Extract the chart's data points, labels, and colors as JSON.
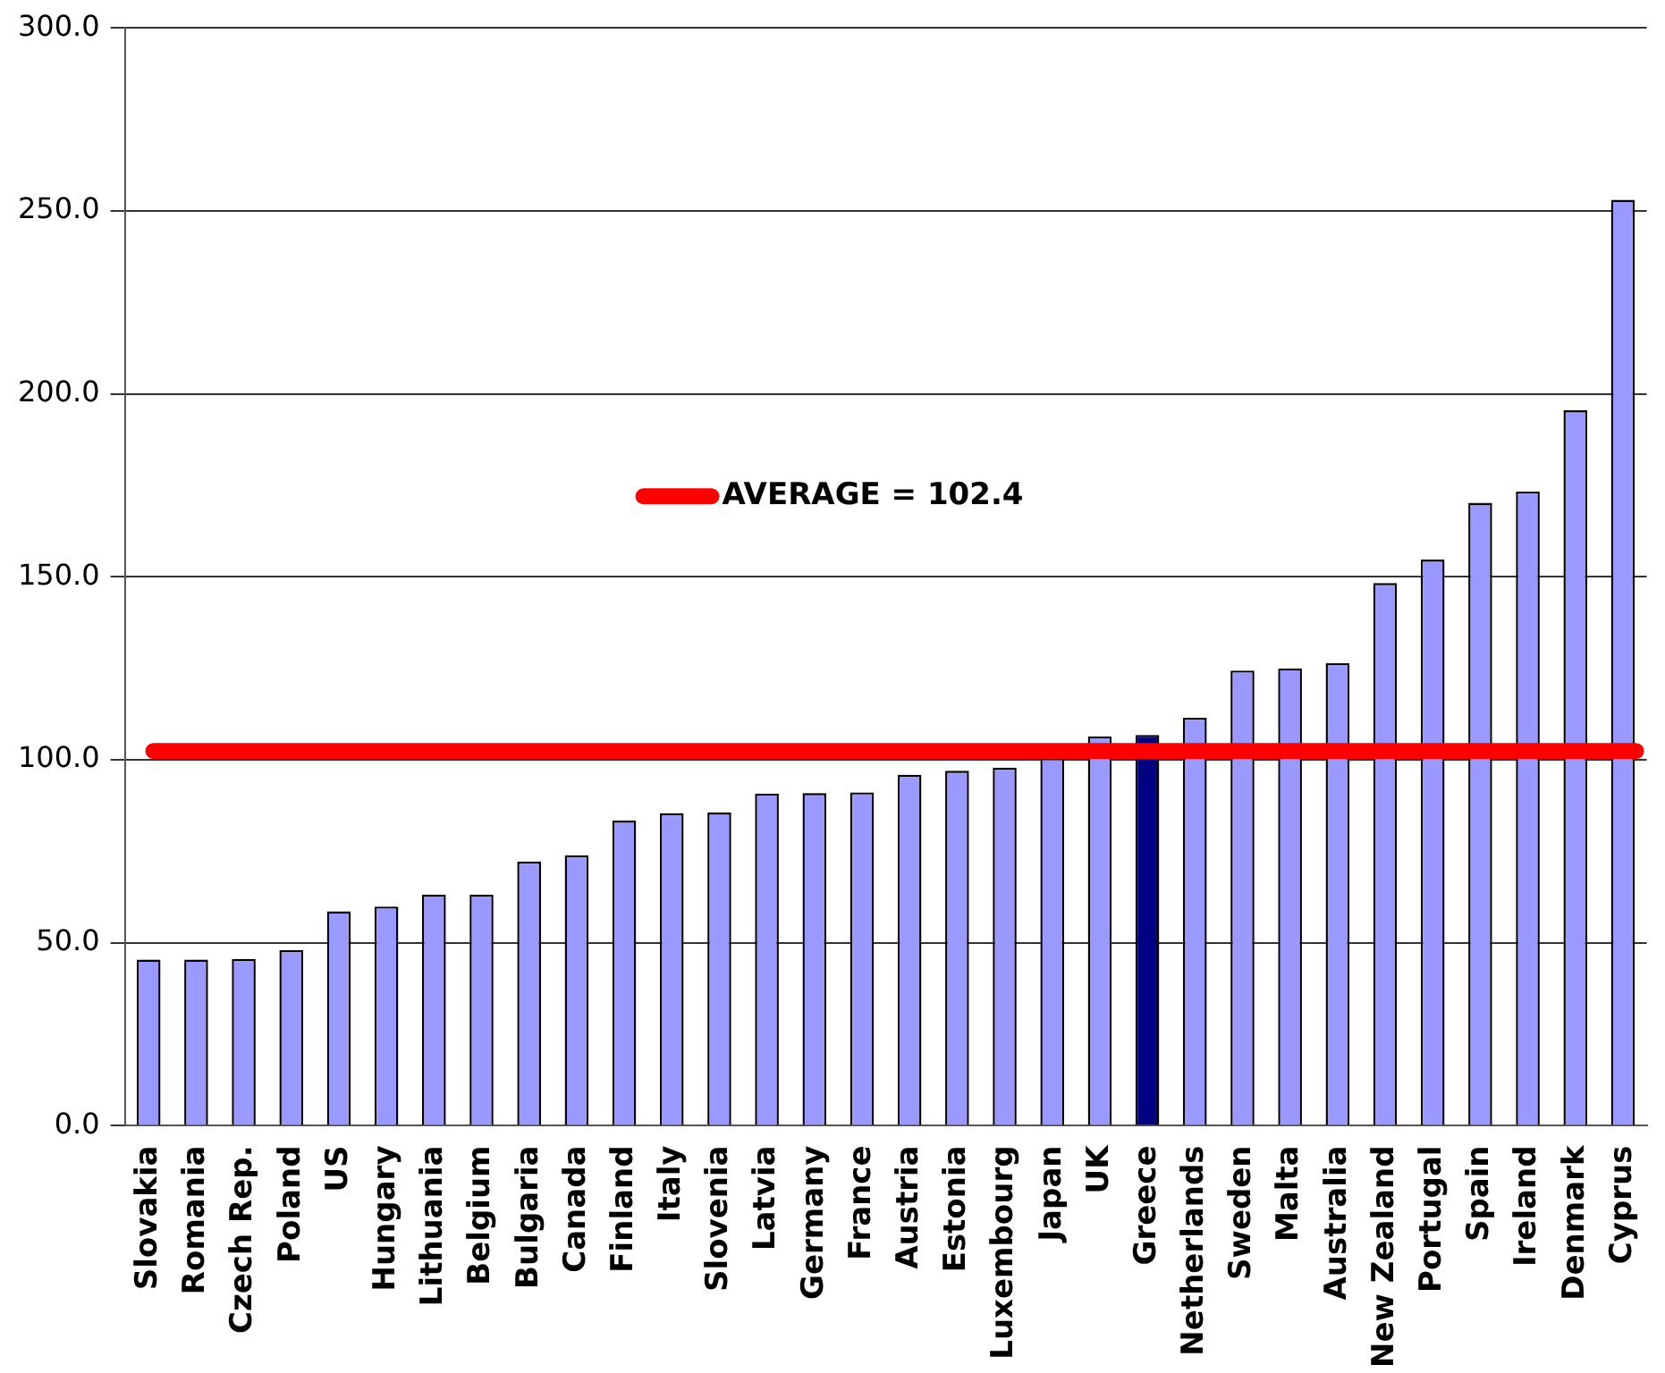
{
  "chart_data": {
    "type": "bar",
    "categories": [
      "Slovakia",
      "Romania",
      "Czech Rep.",
      "Poland",
      "US",
      "Hungary",
      "Lithuania",
      "Belgium",
      "Bulgaria",
      "Canada",
      "Finland",
      "Italy",
      "Slovenia",
      "Latvia",
      "Germany",
      "France",
      "Austria",
      "Estonia",
      "Luxembourg",
      "Japan",
      "UK",
      "Greece",
      "Netherlands",
      "Sweden",
      "Malta",
      "Australia",
      "New Zealand",
      "Portugal",
      "Spain",
      "Ireland",
      "Denmark",
      "Cyprus"
    ],
    "values": [
      45.4,
      45.4,
      45.6,
      48,
      58.6,
      59.9,
      63.2,
      63.2,
      72.2,
      73.9,
      83.4,
      85.4,
      85.6,
      90.8,
      90.9,
      91.1,
      95.9,
      97,
      97.9,
      100.5,
      106.4,
      106.8,
      111.5,
      124.4,
      125,
      126.4,
      148.3,
      154.7,
      170.2,
      173.3,
      195.5,
      253
    ],
    "colors": [
      "#9999ff",
      "#9999ff",
      "#9999ff",
      "#9999ff",
      "#9999ff",
      "#9999ff",
      "#9999ff",
      "#9999ff",
      "#9999ff",
      "#9999ff",
      "#9999ff",
      "#9999ff",
      "#9999ff",
      "#9999ff",
      "#9999ff",
      "#9999ff",
      "#9999ff",
      "#9999ff",
      "#9999ff",
      "#9999ff",
      "#9999ff",
      "#000080",
      "#9999ff",
      "#9999ff",
      "#9999ff",
      "#9999ff",
      "#9999ff",
      "#9999ff",
      "#9999ff",
      "#9999ff",
      "#9999ff",
      "#9999ff"
    ],
    "ylim": [
      0,
      300
    ],
    "yticks": [
      {
        "value": 0,
        "label": "0.0"
      },
      {
        "value": 50,
        "label": "50.0"
      },
      {
        "value": 100,
        "label": "100.0"
      },
      {
        "value": 150,
        "label": "150.0"
      },
      {
        "value": 200,
        "label": "200.0"
      },
      {
        "value": 250,
        "label": "250.0"
      },
      {
        "value": 300,
        "label": "300.0"
      }
    ],
    "grid": "y",
    "ref_lines": [
      {
        "axis": "y",
        "value": 102.4,
        "label": "AVERAGE = 102.4",
        "color": "#ff0000"
      }
    ]
  }
}
